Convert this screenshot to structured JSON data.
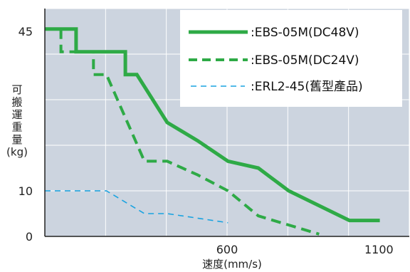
{
  "chart_data": {
    "type": "line",
    "xlabel": "速度(mm/s)",
    "ylabel": "可搬運重量(kg)",
    "ylabel_lines": [
      "可",
      "搬",
      "運",
      "重",
      "量",
      "(kg)"
    ],
    "xlim": [
      0,
      1200
    ],
    "ylim": [
      0,
      50
    ],
    "x_ticks": [
      600,
      1100
    ],
    "y_ticks": [
      0,
      10,
      45
    ],
    "grid": true,
    "grid_x": [
      200,
      400,
      600,
      800,
      1000,
      1200
    ],
    "grid_y": [
      0,
      10,
      20,
      30,
      40,
      50
    ],
    "plot_background": "#ccd4df",
    "grid_color": "#ffffff",
    "legend_position": "top-right",
    "series": [
      {
        "name": ":EBS-05M(DC48V)",
        "color": "#2eaa46",
        "style": "solid",
        "points": [
          [
            0,
            45.5
          ],
          [
            103,
            45.5
          ],
          [
            103,
            40.5
          ],
          [
            265,
            40.5
          ],
          [
            265,
            35.5
          ],
          [
            303,
            35.5
          ],
          [
            403,
            25
          ],
          [
            503,
            21
          ],
          [
            603,
            16.5
          ],
          [
            703,
            15
          ],
          [
            803,
            10
          ],
          [
            1003,
            3.5
          ],
          [
            1103,
            3.5
          ]
        ]
      },
      {
        "name": ":EBS-05M(DC24V)",
        "color": "#2eaa46",
        "style": "dashed",
        "points": [
          [
            53,
            45.5
          ],
          [
            53,
            40.5
          ],
          [
            160,
            40.5
          ],
          [
            160,
            35.5
          ],
          [
            203,
            35.5
          ],
          [
            328,
            16.5
          ],
          [
            403,
            16.5
          ],
          [
            503,
            13.5
          ],
          [
            603,
            10
          ],
          [
            703,
            4.5
          ],
          [
            803,
            2.5
          ],
          [
            903,
            0.5
          ]
        ]
      },
      {
        "name": ":ERL2-45(舊型產品)",
        "color": "#1aa3e0",
        "style": "dashed",
        "points": [
          [
            0,
            10
          ],
          [
            203,
            10
          ],
          [
            328,
            5
          ],
          [
            403,
            5
          ],
          [
            603,
            3
          ]
        ]
      }
    ]
  }
}
